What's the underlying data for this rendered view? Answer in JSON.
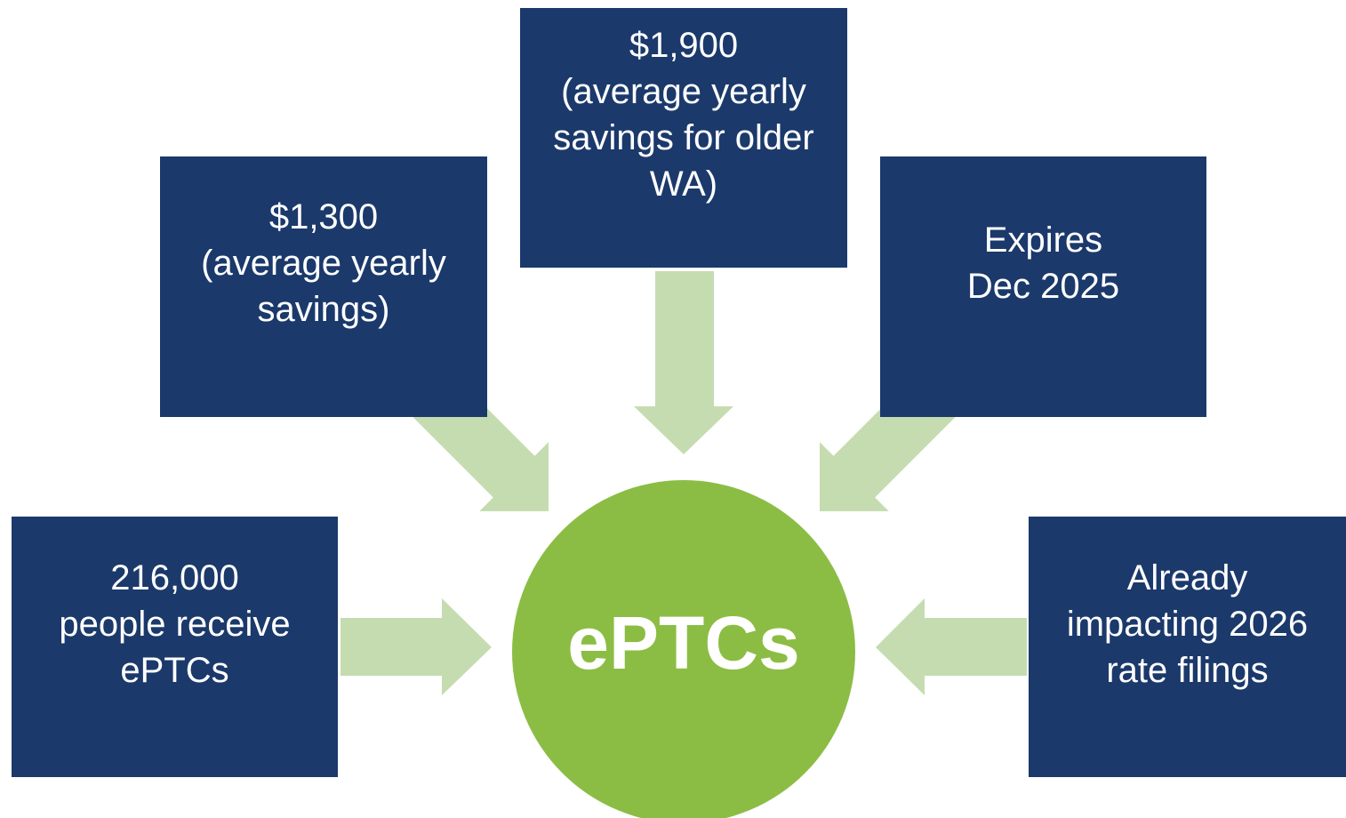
{
  "center": {
    "label": "ePTCs"
  },
  "nodes": [
    {
      "lines": [
        "216,000",
        "people receive",
        "ePTCs"
      ]
    },
    {
      "lines": [
        "$1,300",
        "(average yearly",
        "savings)"
      ]
    },
    {
      "lines": [
        "$1,900",
        "(average yearly",
        "savings for older",
        "WA)"
      ]
    },
    {
      "lines": [
        "Expires",
        "Dec 2025"
      ]
    },
    {
      "lines": [
        "Already",
        "impacting 2026",
        "rate filings"
      ]
    }
  ]
}
